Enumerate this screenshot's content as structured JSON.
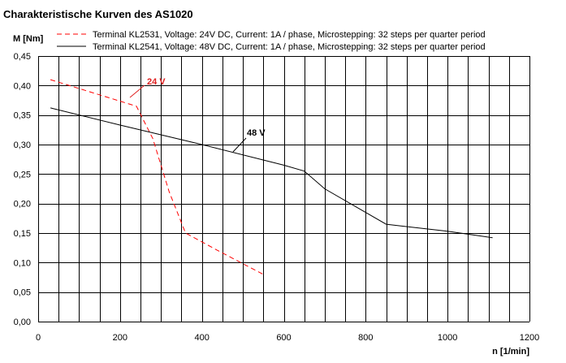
{
  "chart_data": {
    "type": "line",
    "title": "Charakteristische Kurven des AS1020",
    "ylabel": "M [Nm]",
    "xlabel": "n [1/min]",
    "xlim": [
      0,
      1200
    ],
    "ylim": [
      0,
      0.45
    ],
    "x_ticks": [
      "0",
      "200",
      "400",
      "600",
      "800",
      "1000",
      "1200"
    ],
    "y_ticks": [
      "0,00",
      "0,05",
      "0,10",
      "0,15",
      "0,20",
      "0,25",
      "0,30",
      "0,35",
      "0,40",
      "0,45"
    ],
    "grid": true,
    "legend_position": "top",
    "series": [
      {
        "name": "Terminal KL2531, Voltage: 24V DC, Current: 1A / phase, Microstepping: 32 steps per quarter period",
        "style": "dashed",
        "color": "#ff0000",
        "annotation": "24 V",
        "annotation_color": "#e02020",
        "x": [
          30,
          240,
          280,
          320,
          360,
          440,
          550
        ],
        "y": [
          0.41,
          0.365,
          0.31,
          0.22,
          0.15,
          0.12,
          0.08
        ]
      },
      {
        "name": "Terminal KL2541, Voltage: 48V DC, Current: 1A / phase, Microstepping: 32 steps per quarter period",
        "style": "solid",
        "color": "#000000",
        "annotation": "48 V",
        "annotation_color": "#000000",
        "x": [
          30,
          200,
          400,
          600,
          650,
          700,
          850,
          1000,
          1110
        ],
        "y": [
          0.362,
          0.333,
          0.3,
          0.265,
          0.255,
          0.225,
          0.165,
          0.153,
          0.142
        ]
      }
    ]
  }
}
